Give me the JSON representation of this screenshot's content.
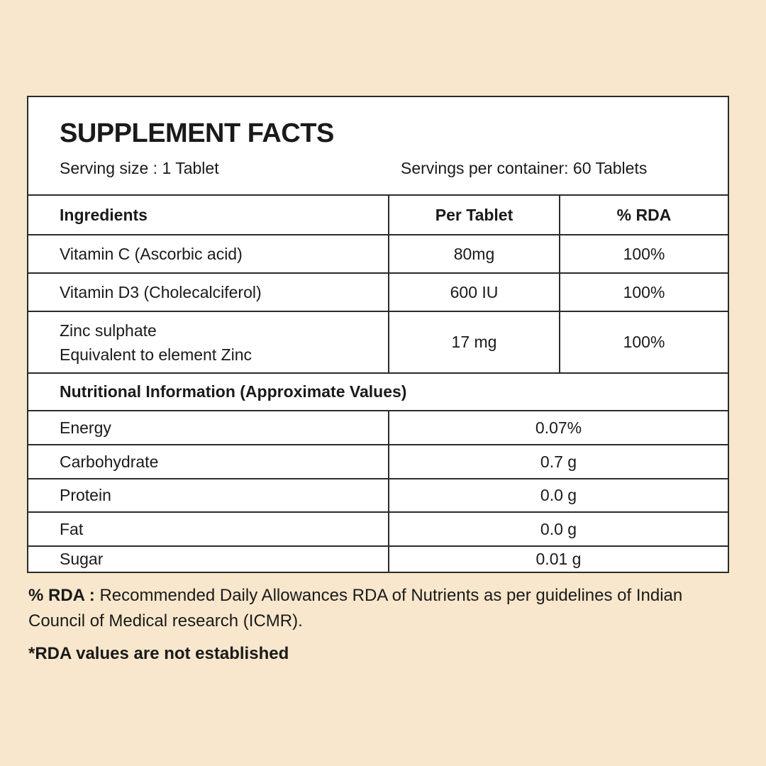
{
  "title": "SUPPLEMENT FACTS",
  "serving_size": "Serving size : 1 Tablet",
  "servings_per_container": "Servings per container: 60 Tablets",
  "ingredients_table": {
    "headers": [
      "Ingredients",
      "Per Tablet",
      "% RDA"
    ],
    "rows": [
      {
        "name": "Vitamin C (Ascorbic acid)",
        "per_tablet": "80mg",
        "rda": "100%"
      },
      {
        "name": "Vitamin D3 (Cholecalciferol)",
        "per_tablet": "600 IU",
        "rda": "100%"
      },
      {
        "name_line1": "Zinc sulphate",
        "name_line2": "Equivalent to element Zinc",
        "per_tablet": "17 mg",
        "rda": "100%"
      }
    ]
  },
  "nutrition": {
    "heading": "Nutritional Information (Approximate Values)",
    "rows": [
      {
        "name": "Energy",
        "value": "0.07%"
      },
      {
        "name": "Carbohydrate",
        "value": "0.7 g"
      },
      {
        "name": "Protein",
        "value": "0.0 g"
      },
      {
        "name": "Fat",
        "value": "0.0 g"
      },
      {
        "name": "Sugar",
        "value": "0.01 g"
      }
    ]
  },
  "footnote": {
    "label": "% RDA :",
    "text": "Recommended Daily Allowances RDA of Nutrients as per guidelines of Indian Council of Medical research (ICMR)."
  },
  "note": "*RDA values are not established",
  "colors": {
    "background": "#f8e7cc",
    "panel": "#ffffff",
    "border": "#2b2b2b"
  }
}
